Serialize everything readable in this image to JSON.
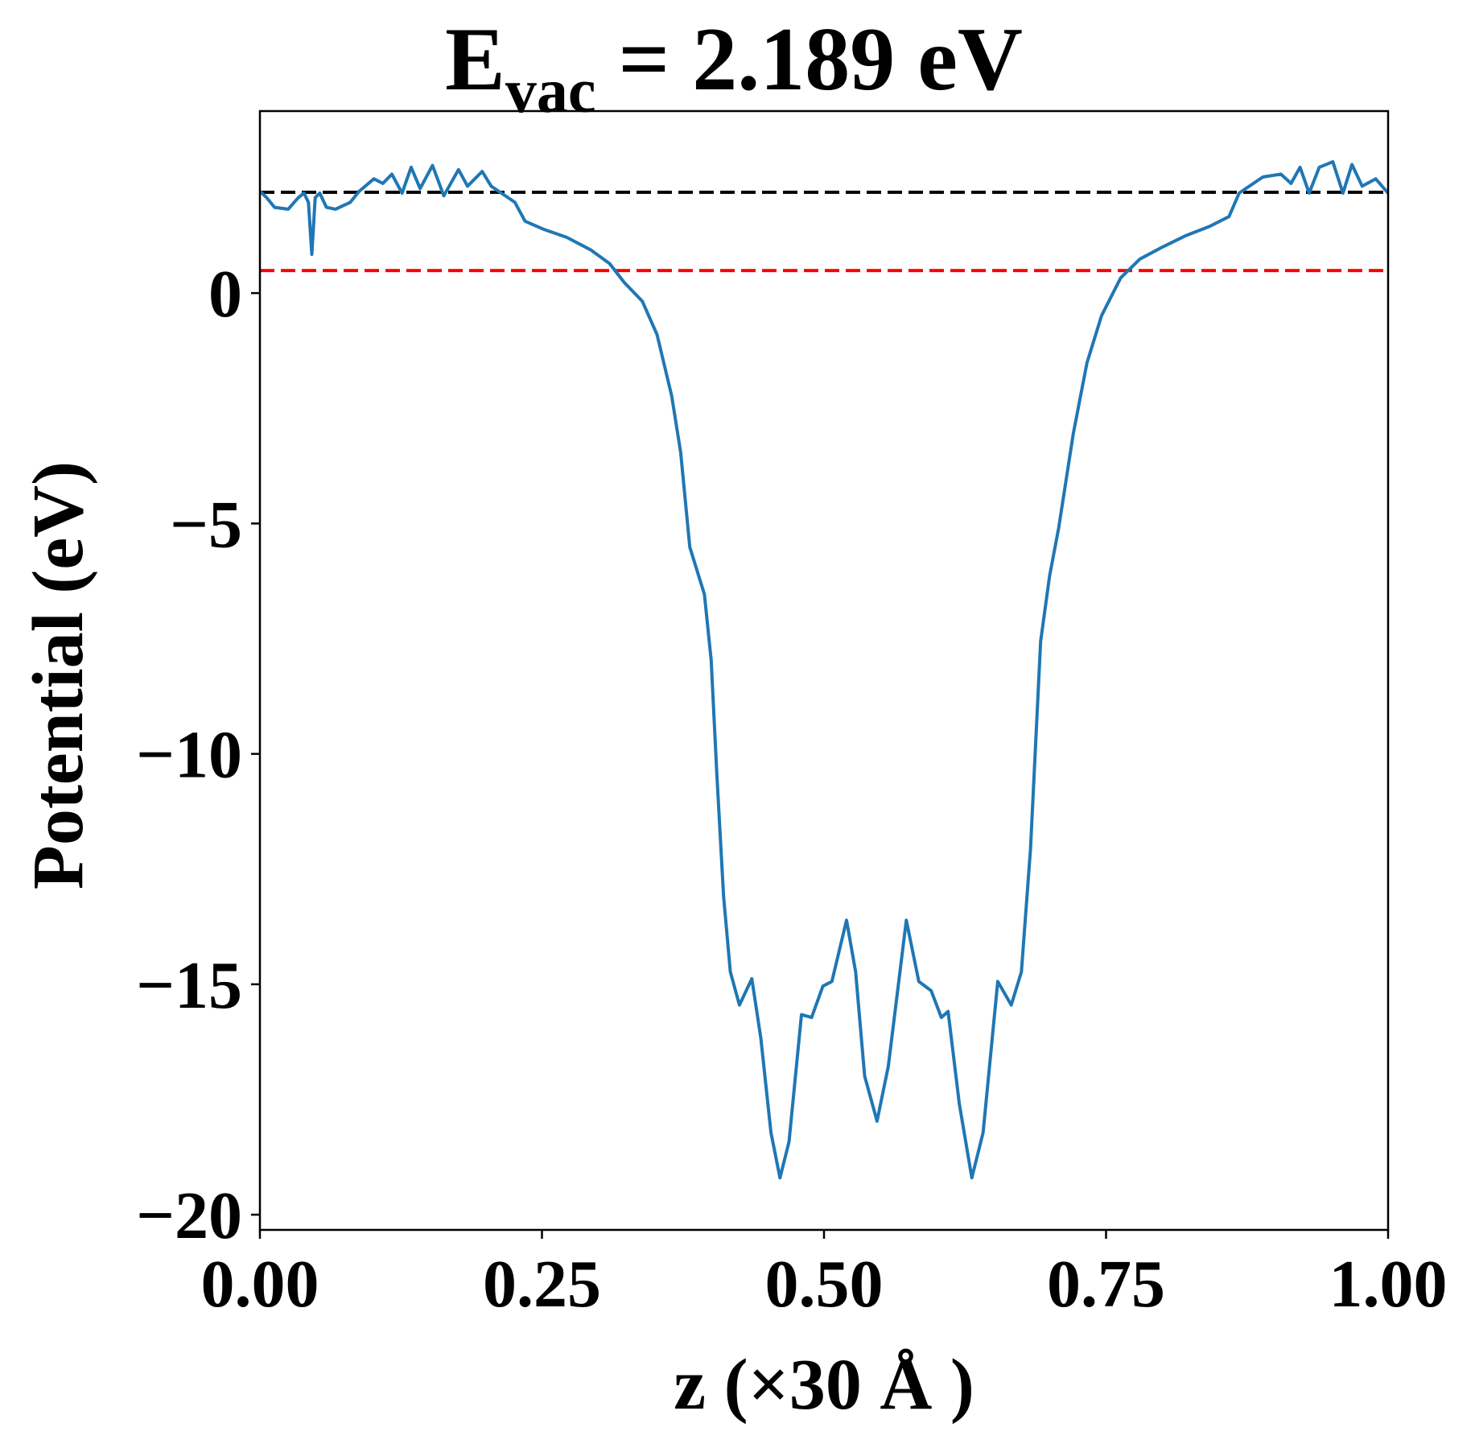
{
  "chart_data": {
    "type": "line",
    "title": {
      "text": "E",
      "subscript": "vac",
      "suffix": " = 2.189 eV"
    },
    "xlabel": "z (×30 Å )",
    "ylabel": "Potential (eV)",
    "xlim": [
      0,
      1
    ],
    "ylim": [
      -20.33,
      3.95
    ],
    "xticks": [
      {
        "value": 0,
        "label": "0.00"
      },
      {
        "value": 0.25,
        "label": "0.25"
      },
      {
        "value": 0.5,
        "label": "0.50"
      },
      {
        "value": 0.75,
        "label": "0.75"
      },
      {
        "value": 1,
        "label": "1.00"
      }
    ],
    "yticks": [
      {
        "value": -20,
        "label": "−20"
      },
      {
        "value": -15,
        "label": "−15"
      },
      {
        "value": -10,
        "label": "−10"
      },
      {
        "value": -5,
        "label": "−5"
      },
      0
    ],
    "hlines": [
      {
        "value": 2.189,
        "color": "#000000"
      },
      {
        "value": 0.49,
        "color": "#ff0000"
      }
    ],
    "series": [
      {
        "color": "#1f77b4",
        "x": [
          0,
          0.006,
          0.013,
          0.025,
          0.034,
          0.039,
          0.043,
          0.046,
          0.049,
          0.053,
          0.059,
          0.067,
          0.08,
          0.088,
          0.101,
          0.109,
          0.117,
          0.126,
          0.134,
          0.142,
          0.153,
          0.163,
          0.176,
          0.184,
          0.197,
          0.205,
          0.214,
          0.226,
          0.235,
          0.251,
          0.272,
          0.293,
          0.31,
          0.323,
          0.339,
          0.352,
          0.365,
          0.373,
          0.381,
          0.394,
          0.4,
          0.405,
          0.411,
          0.417,
          0.425,
          0.436,
          0.444,
          0.453,
          0.461,
          0.469,
          0.48,
          0.489,
          0.499,
          0.507,
          0.52,
          0.528,
          0.536,
          0.547,
          0.557,
          0.573,
          0.584,
          0.595,
          0.604,
          0.61,
          0.62,
          0.631,
          0.641,
          0.654,
          0.666,
          0.675,
          0.683,
          0.692,
          0.7,
          0.708,
          0.721,
          0.733,
          0.746,
          0.763,
          0.78,
          0.8,
          0.821,
          0.842,
          0.859,
          0.868,
          0.889,
          0.905,
          0.914,
          0.922,
          0.93,
          0.939,
          0.951,
          0.96,
          0.968,
          0.977,
          0.989,
          1.0
        ],
        "values": [
          2.21,
          2.07,
          1.86,
          1.82,
          2.07,
          2.17,
          1.97,
          0.84,
          2.07,
          2.17,
          1.86,
          1.82,
          1.97,
          2.21,
          2.48,
          2.38,
          2.58,
          2.17,
          2.73,
          2.27,
          2.77,
          2.11,
          2.68,
          2.32,
          2.64,
          2.32,
          2.17,
          1.97,
          1.56,
          1.39,
          1.21,
          0.94,
          0.64,
          0.23,
          -0.18,
          -0.9,
          -2.23,
          -3.46,
          -5.51,
          -6.54,
          -7.97,
          -10.43,
          -13.09,
          -14.73,
          -15.45,
          -14.88,
          -16.17,
          -18.22,
          -19.2,
          -18.42,
          -15.66,
          -15.72,
          -15.04,
          -14.94,
          -13.61,
          -14.73,
          -16.99,
          -17.97,
          -16.78,
          -13.61,
          -14.94,
          -15.14,
          -15.72,
          -15.59,
          -17.6,
          -19.2,
          -18.22,
          -14.94,
          -15.45,
          -14.73,
          -12.07,
          -7.56,
          -6.13,
          -5.1,
          -3.05,
          -1.52,
          -0.49,
          0.33,
          0.74,
          1.0,
          1.25,
          1.45,
          1.66,
          2.17,
          2.52,
          2.58,
          2.38,
          2.73,
          2.17,
          2.73,
          2.85,
          2.17,
          2.79,
          2.32,
          2.48,
          2.17
        ]
      }
    ]
  }
}
